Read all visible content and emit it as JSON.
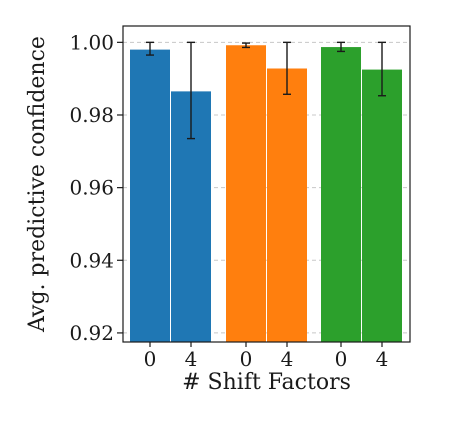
{
  "chart_data": {
    "type": "bar",
    "xlabel": "# Shift Factors",
    "ylabel": "Avg. predictive confidence",
    "ylim": [
      0.9175,
      1.0045
    ],
    "yticks": [
      0.92,
      0.94,
      0.96,
      0.98,
      1.0
    ],
    "ytick_labels": [
      "0.92",
      "0.94",
      "0.96",
      "0.98",
      "1.00"
    ],
    "grid": true,
    "groups": [
      {
        "color": "#1f77b4",
        "bars": [
          {
            "label": "0",
            "value": 0.998,
            "err_low": 0.9965,
            "err_high": 1.0
          },
          {
            "label": "4",
            "value": 0.9865,
            "err_low": 0.9735,
            "err_high": 1.0
          }
        ]
      },
      {
        "color": "#ff7f0e",
        "bars": [
          {
            "label": "0",
            "value": 0.9992,
            "err_low": 0.9986,
            "err_high": 0.9998
          },
          {
            "label": "4",
            "value": 0.9928,
            "err_low": 0.9857,
            "err_high": 1.0
          }
        ]
      },
      {
        "color": "#2ca02c",
        "bars": [
          {
            "label": "0",
            "value": 0.9987,
            "err_low": 0.9975,
            "err_high": 1.0
          },
          {
            "label": "4",
            "value": 0.9925,
            "err_low": 0.9853,
            "err_high": 1.0
          }
        ]
      }
    ]
  }
}
